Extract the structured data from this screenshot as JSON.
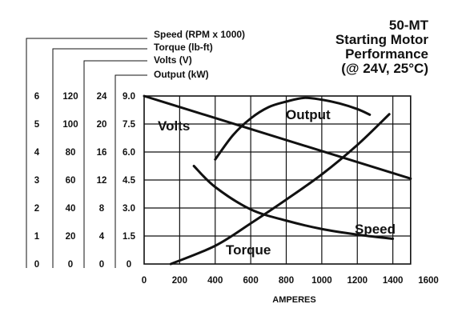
{
  "chart_data": {
    "type": "line",
    "title": [
      "50-MT",
      "Starting Motor",
      "Performance",
      "(@ 24V, 25°C)"
    ],
    "xlabel": "AMPERES",
    "xlim": [
      0,
      1600
    ],
    "x_ticks": [
      0,
      200,
      400,
      600,
      800,
      1000,
      1200,
      1400,
      1600
    ],
    "grid": true,
    "axes": [
      {
        "name": "Speed (RPM x 1000)",
        "ylim": [
          0,
          6
        ],
        "ticks": [
          "0",
          "1",
          "2",
          "3",
          "4",
          "5",
          "6"
        ]
      },
      {
        "name": "Torque (lb-ft)",
        "ylim": [
          0,
          120
        ],
        "ticks": [
          "0",
          "20",
          "40",
          "60",
          "80",
          "100",
          "120"
        ]
      },
      {
        "name": "Volts (V)",
        "ylim": [
          0,
          24
        ],
        "ticks": [
          "0",
          "4",
          "8",
          "12",
          "16",
          "20",
          "24"
        ]
      },
      {
        "name": "Output (kW)",
        "ylim": [
          0,
          9
        ],
        "ticks": [
          "0",
          "1.5",
          "3.0",
          "4.5",
          "6.0",
          "7.5",
          "9.0"
        ]
      }
    ],
    "series": [
      {
        "name": "Volts",
        "axis": "Volts (V)",
        "x": [
          0,
          1500
        ],
        "y": [
          24,
          12.2
        ]
      },
      {
        "name": "Output",
        "axis": "Output (kW)",
        "x": [
          400,
          500,
          600,
          700,
          800,
          900,
          1000,
          1100,
          1200,
          1270
        ],
        "y": [
          5.6,
          6.9,
          7.8,
          8.4,
          8.7,
          8.9,
          8.8,
          8.6,
          8.3,
          8.0
        ]
      },
      {
        "name": "Torque",
        "axis": "Torque (lb-ft)",
        "x": [
          150,
          400,
          600,
          800,
          1000,
          1200,
          1380
        ],
        "y": [
          0,
          13,
          29,
          46,
          64,
          85,
          107
        ]
      },
      {
        "name": "Speed",
        "axis": "Speed (RPM x 1000)",
        "x": [
          280,
          400,
          600,
          800,
          1000,
          1200,
          1400
        ],
        "y": [
          3.5,
          2.75,
          1.95,
          1.55,
          1.25,
          1.05,
          0.9
        ]
      }
    ],
    "series_labels": [
      "Volts",
      "Output",
      "Torque",
      "Speed"
    ]
  }
}
